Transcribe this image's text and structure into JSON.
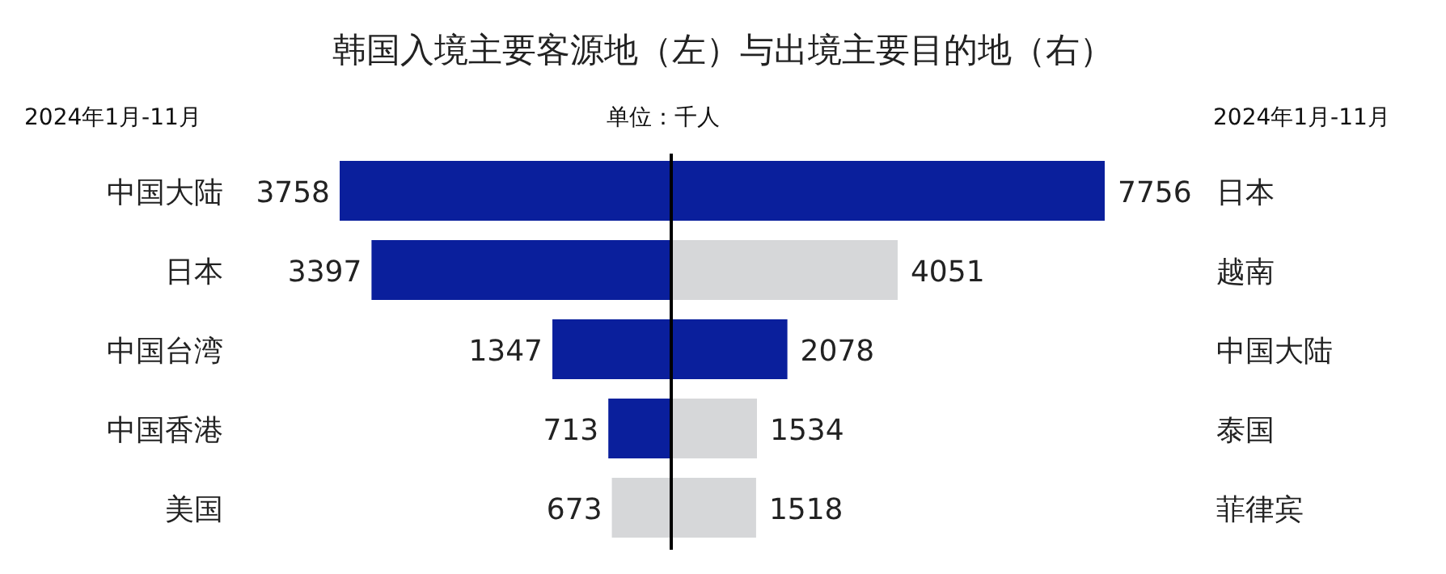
{
  "chart_data": [
    {
      "type": "bar",
      "orientation": "horizontal",
      "title": "韩国入境主要客源地（左）与出境主要目的地（右）",
      "subtitle": "2024年1月-11月",
      "annotations": [
        "单位：千人"
      ],
      "categories": [
        "中国大陆",
        "日本",
        "中国台湾",
        "中国香港",
        "美国"
      ],
      "values": [
        3758,
        3397,
        1347,
        713,
        673
      ],
      "colors": [
        "#0a1f9c",
        "#0a1f9c",
        "#0a1f9c",
        "#0a1f9c",
        "#d6d7d9"
      ],
      "data_labels": true
    },
    {
      "type": "bar",
      "orientation": "horizontal",
      "subtitle": "2024年1月-11月",
      "categories": [
        "日本",
        "越南",
        "中国大陆",
        "泰国",
        "菲律宾"
      ],
      "values": [
        7756,
        4051,
        2078,
        1534,
        1518
      ],
      "colors": [
        "#0a1f9c",
        "#d6d7d9",
        "#0a1f9c",
        "#d6d7d9",
        "#d6d7d9"
      ],
      "data_labels": true
    }
  ]
}
